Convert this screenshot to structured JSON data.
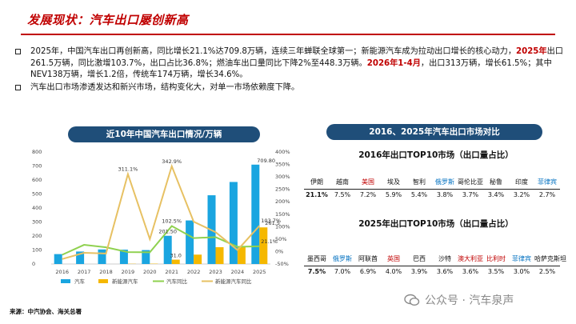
{
  "header": {
    "title": "发展现状：汽车出口屡创新高"
  },
  "bullets": [
    {
      "segments": [
        {
          "text": "2025年，中国汽车出口再创新高，同比增长21.1%达709.8万辆，连续三年蝉联全球第一；新能源汽车成为拉动出口增长的核心动力，",
          "red": false
        },
        {
          "text": "2025年",
          "red": true
        },
        {
          "text": "出口261.5万辆，同比激增103.7%，出口占比36.8%；燃油车出口量同比下降2%至448.3万辆。",
          "red": false
        },
        {
          "text": "2026年1-4月",
          "red": true
        },
        {
          "text": "，出口313万辆，增长61.5%；其中NEV138万辆，增长1.2倍，传统车174万辆，增长34.6%。",
          "red": false
        }
      ]
    },
    {
      "segments": [
        {
          "text": "汽车出口市场渗透发达和新兴市场，结构变化大，对单一市场依赖度下降。",
          "red": false
        }
      ]
    }
  ],
  "left_panel": {
    "title": "近10年中国汽车出口情况/万辆"
  },
  "right_panel": {
    "title": "2016、2025年汽车出口市场对比",
    "table_2016": {
      "title": "2016年出口TOP10市场（出口量占比）",
      "markets": [
        {
          "name": "伊朗",
          "share": "21.1%",
          "style": "normal"
        },
        {
          "name": "越南",
          "share": "7.5%",
          "style": "normal"
        },
        {
          "name": "美国",
          "share": "7.2%",
          "style": "red"
        },
        {
          "name": "埃及",
          "share": "5.9%",
          "style": "normal"
        },
        {
          "name": "智利",
          "share": "5.4%",
          "style": "normal"
        },
        {
          "name": "俄罗斯",
          "share": "3.8%",
          "style": "blue"
        },
        {
          "name": "哥伦比亚",
          "share": "3.7%",
          "style": "normal"
        },
        {
          "name": "秘鲁",
          "share": "3.4%",
          "style": "normal"
        },
        {
          "name": "印度",
          "share": "3.2%",
          "style": "normal"
        },
        {
          "name": "菲律宾",
          "share": "2.7%",
          "style": "blue"
        }
      ]
    },
    "table_2025": {
      "title": "2025年出口TOP10市场（出口量占比）",
      "markets": [
        {
          "name": "墨西哥",
          "share": "7.5%",
          "style": "normal"
        },
        {
          "name": "俄罗斯",
          "share": "7.0%",
          "style": "blue"
        },
        {
          "name": "阿联酋",
          "share": "6.9%",
          "style": "normal"
        },
        {
          "name": "英国",
          "share": "4.0%",
          "style": "red"
        },
        {
          "name": "巴西",
          "share": "3.9%",
          "style": "normal"
        },
        {
          "name": "沙特",
          "share": "3.6%",
          "style": "normal"
        },
        {
          "name": "澳大利亚",
          "share": "3.6%",
          "style": "red"
        },
        {
          "name": "比利时",
          "share": "3.5%",
          "style": "red"
        },
        {
          "name": "菲律宾",
          "share": "3.0%",
          "style": "blue"
        },
        {
          "name": "哈萨克斯坦",
          "share": "2.5%",
          "style": "normal"
        }
      ]
    }
  },
  "footer": {
    "source": "来源：中汽协会、海关总署",
    "watermark": "公众号 · 汽车泉声"
  },
  "colors": {
    "title_red": "#c00000",
    "pill_blue": "#1f4e79",
    "car_bar": "#1aa5e0",
    "nev_bar": "#f5b800",
    "car_yoy_line": "#8fd14f",
    "nev_yoy_line": "#e7c163"
  },
  "chart_data": {
    "type": "bar",
    "categories": [
      "2016",
      "2017",
      "2018",
      "2019",
      "2020",
      "2021",
      "2022",
      "2023",
      "2024",
      "2025"
    ],
    "y_left_ticks": [
      "0",
      "100",
      "200",
      "300",
      "400",
      "500",
      "600",
      "700",
      "800"
    ],
    "y_right_ticks": [
      "-50%",
      "0%",
      "50%",
      "100%",
      "150%",
      "200%",
      "250%",
      "300%",
      "350%",
      "400%"
    ],
    "ylim_left": [
      0,
      800
    ],
    "ylim_right": [
      -50,
      400
    ],
    "series": [
      {
        "name": "汽车",
        "kind": "bar",
        "axis": "left",
        "color": "#1aa5e0",
        "values": [
          70.8,
          89.1,
          104.1,
          102.4,
          99.5,
          201.5,
          311.1,
          491.0,
          585.9,
          709.8
        ]
      },
      {
        "name": "新能源汽车",
        "kind": "bar",
        "axis": "left",
        "color": "#f5b800",
        "values": [
          0.0,
          0.0,
          0.0,
          1.5,
          2.2,
          31.0,
          67.0,
          120.0,
          128.0,
          261.5
        ]
      },
      {
        "name": "汽车同比",
        "kind": "line",
        "axis": "right",
        "color": "#8fd14f",
        "values": [
          -13,
          27,
          17,
          -2,
          -3,
          102.5,
          54,
          58,
          19,
          21.1
        ]
      },
      {
        "name": "新能源汽车同比",
        "kind": "line",
        "axis": "right",
        "color": "#e7c163",
        "values": [
          -30,
          -5,
          -8,
          311.1,
          50,
          342.9,
          120,
          78,
          6,
          103.7
        ]
      }
    ],
    "data_labels": [
      {
        "text": "311.1%",
        "series": "新能源汽车同比",
        "index": 3
      },
      {
        "text": "342.9%",
        "series": "新能源汽车同比",
        "index": 5
      },
      {
        "text": "102.5%",
        "series": "汽车同比",
        "index": 5
      },
      {
        "text": "201.50",
        "series": "汽车",
        "index": 5
      },
      {
        "text": "31.0",
        "series": "新能源汽车",
        "index": 5
      },
      {
        "text": "709.80",
        "series": "汽车",
        "index": 9
      },
      {
        "text": "103.7%",
        "series": "新能源汽车同比",
        "index": 9
      },
      {
        "text": "261.5",
        "series": "新能源汽车",
        "index": 9
      },
      {
        "text": "21.1%",
        "series": "汽车同比",
        "index": 9
      }
    ],
    "legend": [
      "汽车",
      "新能源汽车",
      "汽车同比",
      "新能源汽车同比"
    ],
    "legend_position": "bottom",
    "grid": false
  }
}
